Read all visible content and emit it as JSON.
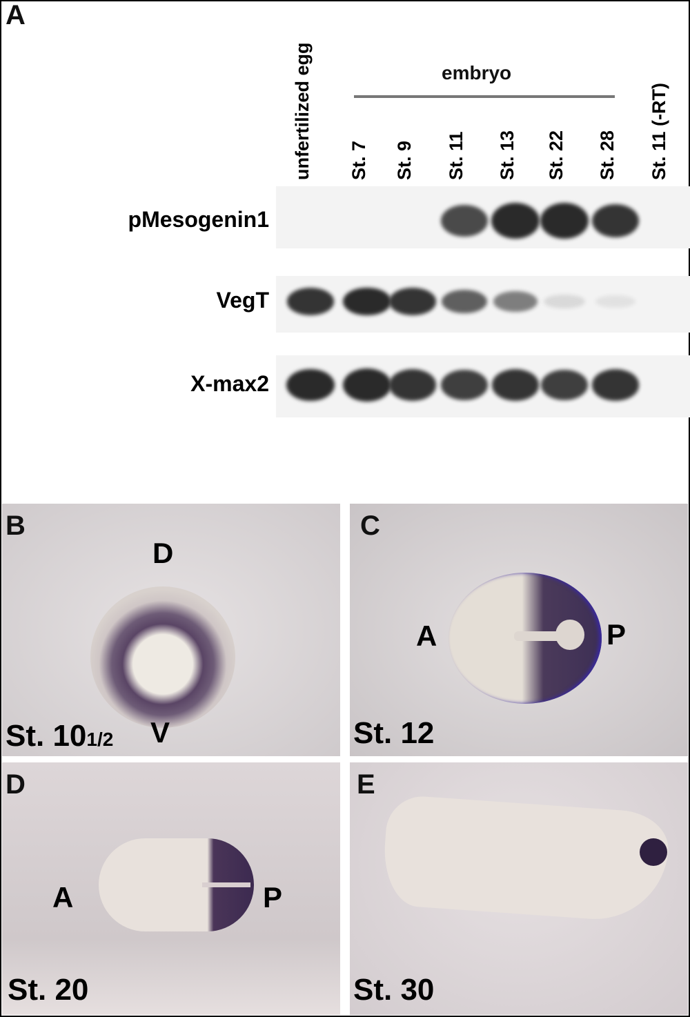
{
  "panel_a": {
    "letter": "A",
    "group_label": "embryo",
    "lanes": [
      "unfertilized egg",
      "St. 7",
      "St. 9",
      "St. 11",
      "St. 13",
      "St. 22",
      "St. 28",
      "St. 11 (-RT)"
    ],
    "rows": [
      {
        "gene": "pMesogenin1",
        "intensity": [
          0,
          0,
          0,
          0.8,
          1,
          1,
          0.9,
          0
        ]
      },
      {
        "gene": "VegT",
        "intensity": [
          0.9,
          0.95,
          0.9,
          0.7,
          0.55,
          0.12,
          0.08,
          0
        ]
      },
      {
        "gene": "X-max2",
        "intensity": [
          0.95,
          1,
          0.9,
          0.85,
          0.9,
          0.85,
          0.9,
          0
        ]
      }
    ]
  },
  "panel_b": {
    "letter": "B",
    "stage": "St. 10",
    "stage_fraction": "1/2",
    "top_axis": "D",
    "bottom_axis": "V"
  },
  "panel_c": {
    "letter": "C",
    "stage": "St. 12",
    "left_axis": "A",
    "right_axis": "P"
  },
  "panel_d": {
    "letter": "D",
    "stage": "St. 20",
    "left_axis": "A",
    "right_axis": "P"
  },
  "panel_e": {
    "letter": "E",
    "stage": "St. 30"
  },
  "colors": {
    "stain": "#4a3558",
    "background": "#d6d0d2",
    "band": "#2a2a2a"
  }
}
